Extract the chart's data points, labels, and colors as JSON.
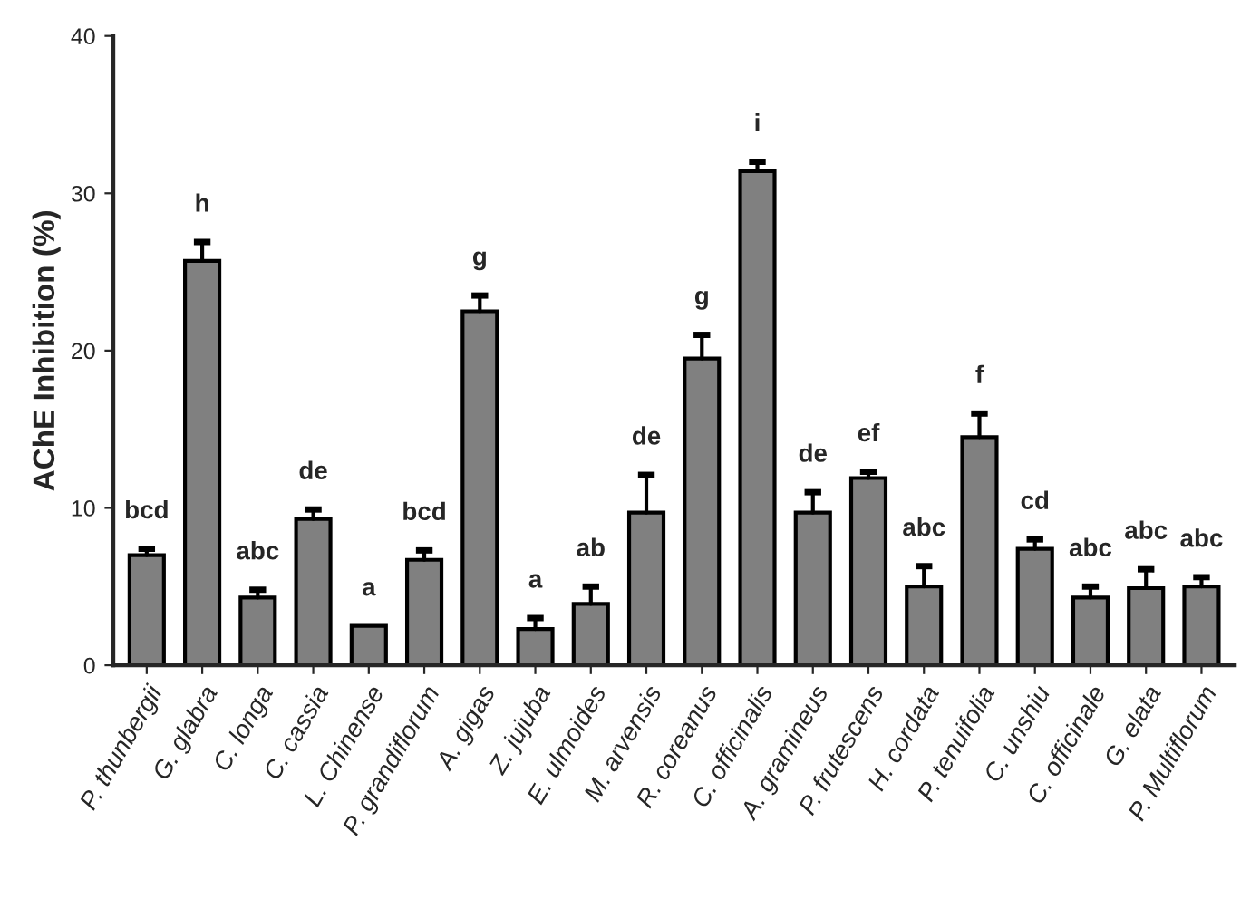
{
  "chart_data": {
    "type": "bar",
    "ylabel": "AChE Inhibition (%)",
    "categories": [
      "P. thunbergii",
      "G. glabra",
      "C. longa",
      "C. cassia",
      "L. Chinense",
      "P. grandiflorum",
      "A. gigas",
      "Z. jujuba",
      "E. ulmoides",
      "M. arvensis",
      "R. coreanus",
      "C. officinalis",
      "A. gramineus",
      "P. frutescens",
      "H. cordata",
      "P. tenuifolia",
      "C. unshiu",
      "C. officinale",
      "G. elata",
      "P. Multiflorum"
    ],
    "values": [
      7.0,
      25.7,
      4.3,
      9.3,
      2.5,
      6.7,
      22.5,
      2.3,
      3.9,
      9.7,
      19.5,
      31.4,
      9.7,
      11.9,
      5.0,
      14.5,
      7.4,
      4.3,
      4.9,
      5.0
    ],
    "errors": [
      [
        7.0,
        7.4
      ],
      [
        25.7,
        26.9
      ],
      [
        4.3,
        4.8
      ],
      [
        9.3,
        9.9
      ],
      null,
      [
        6.7,
        7.3
      ],
      [
        22.5,
        23.5
      ],
      [
        2.3,
        3.0
      ],
      [
        3.9,
        5.0
      ],
      [
        9.7,
        12.1
      ],
      [
        19.5,
        21.0
      ],
      [
        31.4,
        32.0
      ],
      [
        9.7,
        11.0
      ],
      [
        11.9,
        12.3
      ],
      [
        5.0,
        6.3
      ],
      [
        14.5,
        16.0
      ],
      [
        7.4,
        8.0
      ],
      [
        4.3,
        5.0
      ],
      [
        4.9,
        6.1
      ],
      [
        5.0,
        5.6
      ]
    ],
    "color": "#808080",
    "ylim": [
      0,
      40
    ],
    "yticks": [
      0,
      10,
      20,
      30,
      40
    ],
    "grid": false,
    "legend": false,
    "annotations": [
      {
        "text": "bcd",
        "x": "P. thunbergii",
        "y": 7.4
      },
      {
        "text": "h",
        "x": "G. glabra",
        "y": 26.9
      },
      {
        "text": "abc",
        "x": "C. longa",
        "y": 4.8
      },
      {
        "text": "de",
        "x": "C. cassia",
        "y": 9.9
      },
      {
        "text": "a",
        "x": "L. Chinense",
        "y": 2.5
      },
      {
        "text": "bcd",
        "x": "P. grandiflorum",
        "y": 7.3
      },
      {
        "text": "g",
        "x": "A. gigas",
        "y": 23.5
      },
      {
        "text": "a",
        "x": "Z. jujuba",
        "y": 3.0
      },
      {
        "text": "ab",
        "x": "E. ulmoides",
        "y": 5.0
      },
      {
        "text": "de",
        "x": "M. arvensis",
        "y": 12.1
      },
      {
        "text": "g",
        "x": "R. coreanus",
        "y": 21.0
      },
      {
        "text": "i",
        "x": "C. officinalis",
        "y": 32.0
      },
      {
        "text": "de",
        "x": "A. gramineus",
        "y": 11.0
      },
      {
        "text": "ef",
        "x": "P. frutescens",
        "y": 12.3
      },
      {
        "text": "abc",
        "x": "H. cordata",
        "y": 6.3
      },
      {
        "text": "f",
        "x": "P. tenuifolia",
        "y": 16.0
      },
      {
        "text": "cd",
        "x": "C. unshiu",
        "y": 8.0
      },
      {
        "text": "abc",
        "x": "C. officinale",
        "y": 5.0
      },
      {
        "text": "abc",
        "x": "G. elata",
        "y": 6.1
      },
      {
        "text": "abc",
        "x": "P. Multiflorum",
        "y": 5.6
      }
    ]
  }
}
